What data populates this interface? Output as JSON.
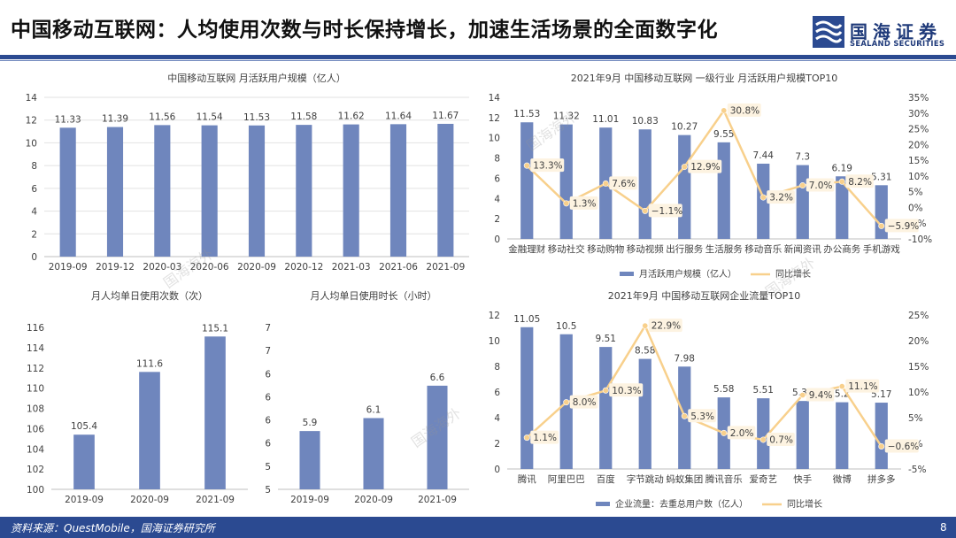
{
  "header": {
    "title": "中国移动互联网：人均使用次数与时长保持增长，加速生活场景的全面数字化",
    "brand": "国海证券",
    "brand_en": "SEALAND SECURITIES"
  },
  "footer": {
    "source": "资料来源：QuestMobile，国海证券研究所",
    "page": "8"
  },
  "watermark": "国海海外",
  "colors": {
    "bar": "#6f86bd",
    "line": "#f8d08c",
    "navy": "#2b4a91"
  },
  "chart_data": [
    {
      "type": "bar",
      "title": "中国移动互联网 月活跃用户规模（亿人）",
      "categories": [
        "2019-09",
        "2019-12",
        "2020-03",
        "2020-06",
        "2020-09",
        "2020-12",
        "2021-03",
        "2021-06",
        "2021-09"
      ],
      "values": [
        11.33,
        11.39,
        11.56,
        11.54,
        11.53,
        11.58,
        11.62,
        11.64,
        11.67
      ],
      "labels": [
        "11.33",
        "11.39",
        "11.56",
        "11.54",
        "11.53",
        "11.58",
        "11.62",
        "11.64",
        "11.67"
      ],
      "ylim": [
        0,
        14
      ],
      "yticks": [
        "0",
        "2",
        "4",
        "6",
        "8",
        "10",
        "12",
        "14"
      ],
      "grid": true
    },
    {
      "type": "bar+line",
      "title": "2021年9月 中国移动互联网 一级行业 月活跃用户规模TOP10",
      "categories": [
        "金融理财",
        "移动社交",
        "移动购物",
        "移动视频",
        "出行服务",
        "生活服务",
        "移动音乐",
        "新闻资讯",
        "办公商务",
        "手机游戏"
      ],
      "series": [
        {
          "name": "月活跃用户规模（亿人）",
          "type": "bar",
          "axis": "left",
          "values": [
            11.53,
            11.32,
            11.01,
            10.83,
            10.27,
            9.55,
            7.44,
            7.3,
            6.19,
            5.31
          ],
          "labels": [
            "11.53",
            "11.32",
            "11.01",
            "10.83",
            "10.27",
            "9.55",
            "7.44",
            "7.3",
            "6.19",
            "5.31"
          ]
        },
        {
          "name": "同比增长",
          "type": "line",
          "axis": "right",
          "values": [
            13.3,
            1.3,
            7.6,
            -1.1,
            12.9,
            30.8,
            3.2,
            7.0,
            8.2,
            -5.9
          ],
          "labels": [
            "13.3%",
            "1.3%",
            "7.6%",
            "−1.1%",
            "12.9%",
            "30.8%",
            "3.2%",
            "7.0%",
            "8.2%",
            "−5.9%"
          ]
        }
      ],
      "ylim": [
        0,
        14
      ],
      "y2lim": [
        -10,
        35
      ],
      "yticks": [
        "0",
        "2",
        "4",
        "6",
        "8",
        "10",
        "12",
        "14"
      ],
      "y2ticks": [
        "-10%",
        "-5%",
        "0%",
        "5%",
        "10%",
        "15%",
        "20%",
        "25%",
        "30%",
        "35%"
      ],
      "legend": "bottom",
      "legend_labels": [
        "月活跃用户规模（亿人）",
        "同比增长"
      ],
      "grid": false
    },
    {
      "type": "bar",
      "title": "月人均单日使用次数（次）",
      "categories": [
        "2019-09",
        "2020-09",
        "2021-09"
      ],
      "values": [
        105.4,
        111.6,
        115.1
      ],
      "labels": [
        "105.4",
        "111.6",
        "115.1"
      ],
      "ylim": [
        100,
        116
      ],
      "yticks": [
        "100",
        "102",
        "104",
        "106",
        "108",
        "110",
        "112",
        "114",
        "116"
      ],
      "grid": false
    },
    {
      "type": "bar",
      "title": "月人均单日使用时长（小时）",
      "categories": [
        "2019-09",
        "2020-09",
        "2021-09"
      ],
      "values": [
        5.9,
        6.1,
        6.6
      ],
      "labels": [
        "5.9",
        "6.1",
        "6.6"
      ],
      "ylim": [
        5,
        7.5
      ],
      "yticks": [
        "5",
        "5",
        "6",
        "6",
        "6",
        "6",
        "7",
        "7"
      ],
      "grid": false
    },
    {
      "type": "bar+line",
      "title": "2021年9月 中国移动互联网企业流量TOP10",
      "categories": [
        "腾讯",
        "阿里巴巴",
        "百度",
        "字节跳动",
        "蚂蚁集团",
        "腾讯音乐",
        "爱奇艺",
        "快手",
        "微博",
        "拼多多"
      ],
      "series": [
        {
          "name": "企业流量：去重总用户数（亿人）",
          "type": "bar",
          "axis": "left",
          "values": [
            11.05,
            10.5,
            9.51,
            8.58,
            7.98,
            5.58,
            5.51,
            5.3,
            5.2,
            5.17
          ],
          "labels": [
            "11.05",
            "10.5",
            "9.51",
            "8.58",
            "7.98",
            "5.58",
            "5.51",
            "5.30",
            "5.2",
            "5.17"
          ]
        },
        {
          "name": "同比增长",
          "type": "line",
          "axis": "right",
          "values": [
            1.1,
            8.0,
            10.3,
            22.9,
            5.3,
            2.0,
            0.7,
            9.4,
            11.1,
            -0.6
          ],
          "labels": [
            "1.1%",
            "8.0%",
            "10.3%",
            "22.9%",
            "5.3%",
            "2.0%",
            "0.7%",
            "9.4%",
            "11.1%",
            "−0.6%"
          ]
        }
      ],
      "ylim": [
        0,
        12
      ],
      "y2lim": [
        -5,
        25
      ],
      "yticks": [
        "0",
        "2",
        "4",
        "6",
        "8",
        "10",
        "12"
      ],
      "y2ticks": [
        "-5%",
        "0%",
        "5%",
        "10%",
        "15%",
        "20%",
        "25%"
      ],
      "legend": "bottom",
      "legend_labels": [
        "企业流量：去重总用户数（亿人）",
        "同比增长"
      ],
      "grid": false
    }
  ]
}
